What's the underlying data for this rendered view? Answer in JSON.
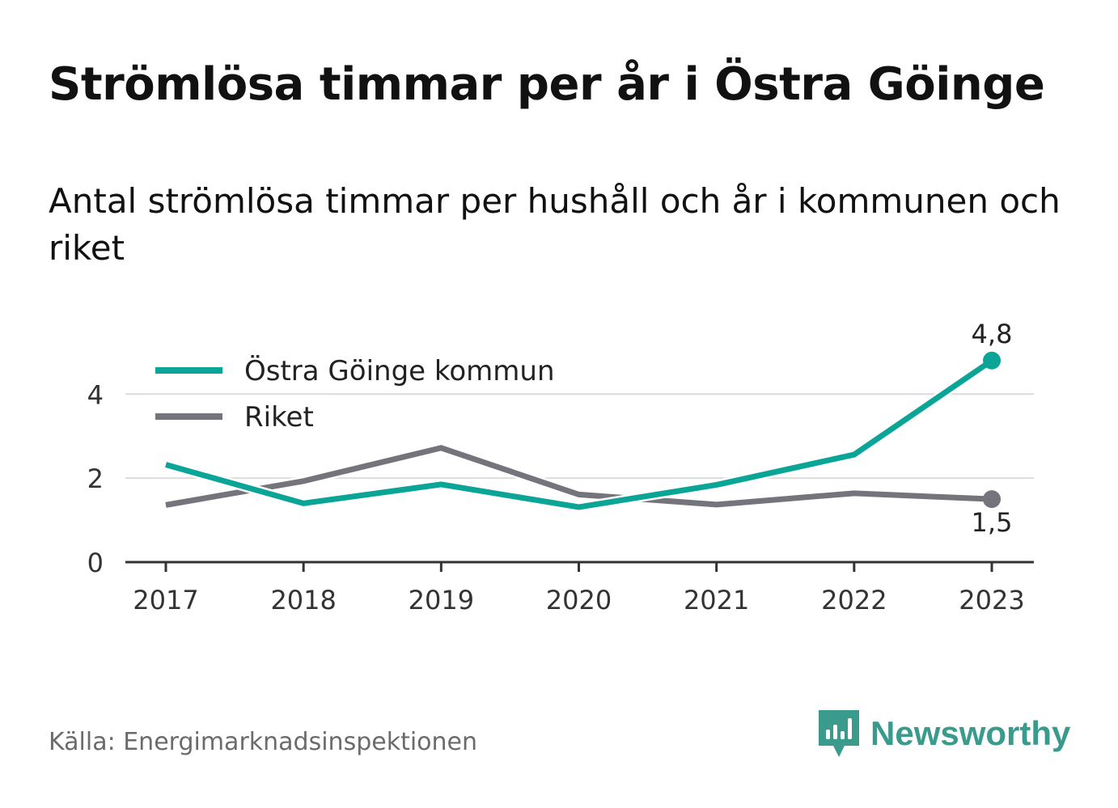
{
  "title": "Strömlösa timmar per år i Östra Göinge",
  "subtitle": "Antal strömlösa timmar per hushåll och år i kommunen och riket",
  "source": "Källa: Energimarknadsinspektionen",
  "brand": {
    "name": "Newsworthy",
    "icon": "newsworthy-logo-icon",
    "color": "#3a9b8c"
  },
  "chart_data": {
    "type": "line",
    "x": [
      "2017",
      "2018",
      "2019",
      "2020",
      "2021",
      "2022",
      "2023"
    ],
    "yticks": [
      "0",
      "2",
      "4"
    ],
    "ylim": [
      0,
      5.2
    ],
    "grid": true,
    "legend_position": "top-left",
    "series": [
      {
        "name": "Östra Göinge kommun",
        "color": "#0aa596",
        "values": [
          2.32,
          1.4,
          1.85,
          1.31,
          1.84,
          2.56,
          4.8
        ],
        "end_label": "4,8"
      },
      {
        "name": "Riket",
        "color": "#75747c",
        "values": [
          1.36,
          1.93,
          2.72,
          1.61,
          1.37,
          1.64,
          1.5
        ],
        "end_label": "1,5"
      }
    ]
  }
}
